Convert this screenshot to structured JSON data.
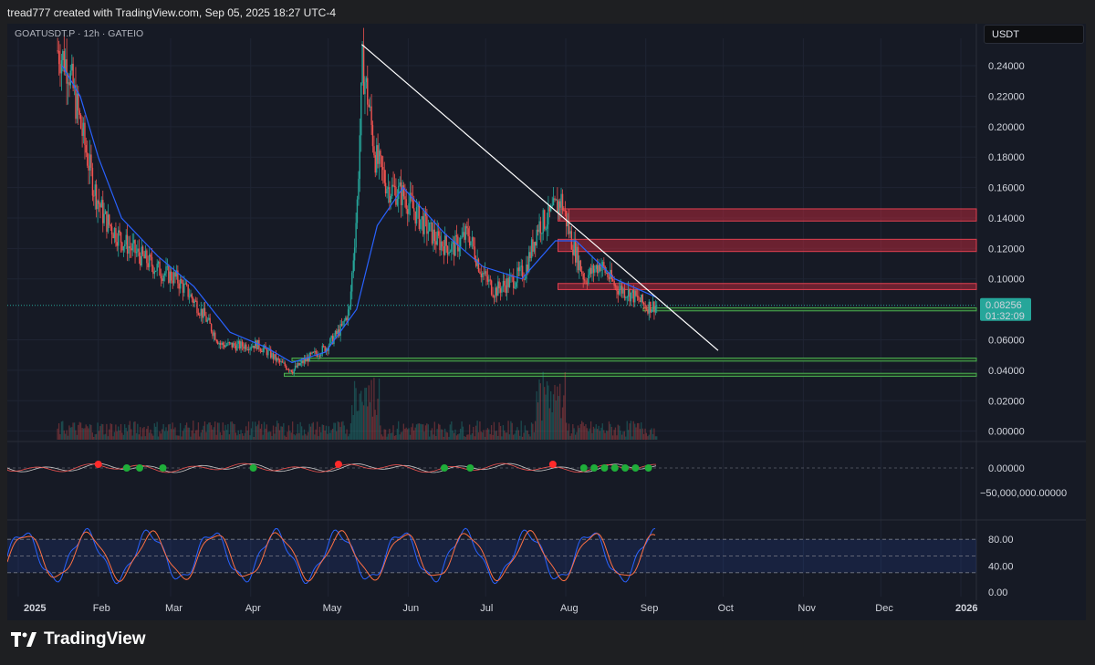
{
  "header": "tread777 created with TradingView.com, Sep 05, 2025 18:27 UTC-4",
  "ticker": "GOATUSDT.P · 12h · GATEIO",
  "currency": "USDT",
  "brand": "TradingView",
  "last_price": {
    "value": "0.08256",
    "countdown": "01:32:09"
  },
  "colors": {
    "background": "#161a25",
    "candle_up": "#26a69a",
    "candle_down": "#ef5350",
    "ma": "#2962ff",
    "resistance_zone": "#b2283a",
    "support_zone": "#4caf50",
    "trendline": "#ffffff",
    "stoch_k": "#2962ff",
    "stoch_d": "#ff7043"
  },
  "chart_data": {
    "type": "candlestick",
    "interval": "12h",
    "price_axis": {
      "ylim": [
        -0.005,
        0.258
      ],
      "ticks": [
        "0.24000",
        "0.22000",
        "0.20000",
        "0.18000",
        "0.16000",
        "0.14000",
        "0.12000",
        "0.10000",
        "0.06000",
        "0.04000",
        "0.02000",
        "0.00000"
      ]
    },
    "time_axis": {
      "labels": [
        "2025",
        "Feb",
        "Mar",
        "Apr",
        "May",
        "Jun",
        "Jul",
        "Aug",
        "Sep",
        "Oct",
        "Nov",
        "Dec",
        "2026"
      ],
      "start": "2025-01-01",
      "end": "2026-01-07"
    },
    "price_series": [
      {
        "date": "2025-01-16",
        "close": 0.25
      },
      {
        "date": "2025-01-20",
        "close": 0.24
      },
      {
        "date": "2025-01-25",
        "close": 0.2
      },
      {
        "date": "2025-01-30",
        "close": 0.16
      },
      {
        "date": "2025-02-03",
        "close": 0.14
      },
      {
        "date": "2025-02-10",
        "close": 0.125
      },
      {
        "date": "2025-02-17",
        "close": 0.115
      },
      {
        "date": "2025-02-25",
        "close": 0.105
      },
      {
        "date": "2025-03-03",
        "close": 0.1
      },
      {
        "date": "2025-03-08",
        "close": 0.09
      },
      {
        "date": "2025-03-14",
        "close": 0.075
      },
      {
        "date": "2025-03-20",
        "close": 0.057
      },
      {
        "date": "2025-03-27",
        "close": 0.056
      },
      {
        "date": "2025-04-03",
        "close": 0.057
      },
      {
        "date": "2025-04-08",
        "close": 0.051
      },
      {
        "date": "2025-04-12",
        "close": 0.045
      },
      {
        "date": "2025-04-17",
        "close": 0.04
      },
      {
        "date": "2025-04-23",
        "close": 0.048
      },
      {
        "date": "2025-04-30",
        "close": 0.055
      },
      {
        "date": "2025-05-06",
        "close": 0.068
      },
      {
        "date": "2025-05-09",
        "close": 0.08
      },
      {
        "date": "2025-05-12",
        "close": 0.15
      },
      {
        "date": "2025-05-14",
        "close": 0.24
      },
      {
        "date": "2025-05-16",
        "close": 0.22
      },
      {
        "date": "2025-05-19",
        "close": 0.18
      },
      {
        "date": "2025-05-24",
        "close": 0.16
      },
      {
        "date": "2025-05-30",
        "close": 0.155
      },
      {
        "date": "2025-06-05",
        "close": 0.14
      },
      {
        "date": "2025-06-12",
        "close": 0.125
      },
      {
        "date": "2025-06-18",
        "close": 0.12
      },
      {
        "date": "2025-06-24",
        "close": 0.13
      },
      {
        "date": "2025-06-29",
        "close": 0.105
      },
      {
        "date": "2025-07-04",
        "close": 0.092
      },
      {
        "date": "2025-07-10",
        "close": 0.098
      },
      {
        "date": "2025-07-16",
        "close": 0.105
      },
      {
        "date": "2025-07-21",
        "close": 0.135
      },
      {
        "date": "2025-07-25",
        "close": 0.14
      },
      {
        "date": "2025-07-30",
        "close": 0.152
      },
      {
        "date": "2025-08-03",
        "close": 0.125
      },
      {
        "date": "2025-08-08",
        "close": 0.1
      },
      {
        "date": "2025-08-14",
        "close": 0.11
      },
      {
        "date": "2025-08-20",
        "close": 0.095
      },
      {
        "date": "2025-08-26",
        "close": 0.09
      },
      {
        "date": "2025-09-01",
        "close": 0.082
      },
      {
        "date": "2025-09-05",
        "close": 0.0826
      }
    ],
    "moving_average": [
      {
        "date": "2025-01-18",
        "value": 0.24
      },
      {
        "date": "2025-01-25",
        "value": 0.22
      },
      {
        "date": "2025-02-01",
        "value": 0.18
      },
      {
        "date": "2025-02-10",
        "value": 0.14
      },
      {
        "date": "2025-02-24",
        "value": 0.115
      },
      {
        "date": "2025-03-10",
        "value": 0.095
      },
      {
        "date": "2025-03-24",
        "value": 0.065
      },
      {
        "date": "2025-04-07",
        "value": 0.055
      },
      {
        "date": "2025-04-17",
        "value": 0.045
      },
      {
        "date": "2025-04-30",
        "value": 0.052
      },
      {
        "date": "2025-05-12",
        "value": 0.08
      },
      {
        "date": "2025-05-20",
        "value": 0.135
      },
      {
        "date": "2025-05-30",
        "value": 0.16
      },
      {
        "date": "2025-06-15",
        "value": 0.13
      },
      {
        "date": "2025-06-30",
        "value": 0.108
      },
      {
        "date": "2025-07-15",
        "value": 0.1
      },
      {
        "date": "2025-07-28",
        "value": 0.125
      },
      {
        "date": "2025-08-05",
        "value": 0.125
      },
      {
        "date": "2025-08-20",
        "value": 0.1
      },
      {
        "date": "2025-09-05",
        "value": 0.088
      }
    ],
    "trendline": {
      "start": {
        "date": "2025-05-14",
        "value": 0.254
      },
      "end": {
        "date": "2025-09-29",
        "value": 0.053
      }
    },
    "resistance_zones": [
      [
        0.138,
        0.146
      ],
      [
        0.118,
        0.126
      ],
      [
        0.093,
        0.097
      ]
    ],
    "support_zones": [
      [
        0.079,
        0.081
      ],
      [
        0.046,
        0.048
      ],
      [
        0.036,
        0.038
      ]
    ],
    "last_price_line": 0.0826,
    "oscillator": {
      "ticks": [
        "0.00000",
        "−50,000,000.00000"
      ],
      "zero_label": "0.00000",
      "green_dots": [
        "2025-02-12",
        "2025-02-17",
        "2025-02-26",
        "2025-04-02",
        "2025-06-15",
        "2025-06-25",
        "2025-08-08",
        "2025-08-12",
        "2025-08-16",
        "2025-08-20",
        "2025-08-24",
        "2025-08-28",
        "2025-09-02"
      ],
      "red_dots": [
        "2025-02-01",
        "2025-05-05",
        "2025-07-27"
      ]
    },
    "stoch_rsi": {
      "ticks": [
        "80.00",
        "40.00",
        "0.00"
      ],
      "upper": 80,
      "lower": 20,
      "mid": 50
    }
  }
}
